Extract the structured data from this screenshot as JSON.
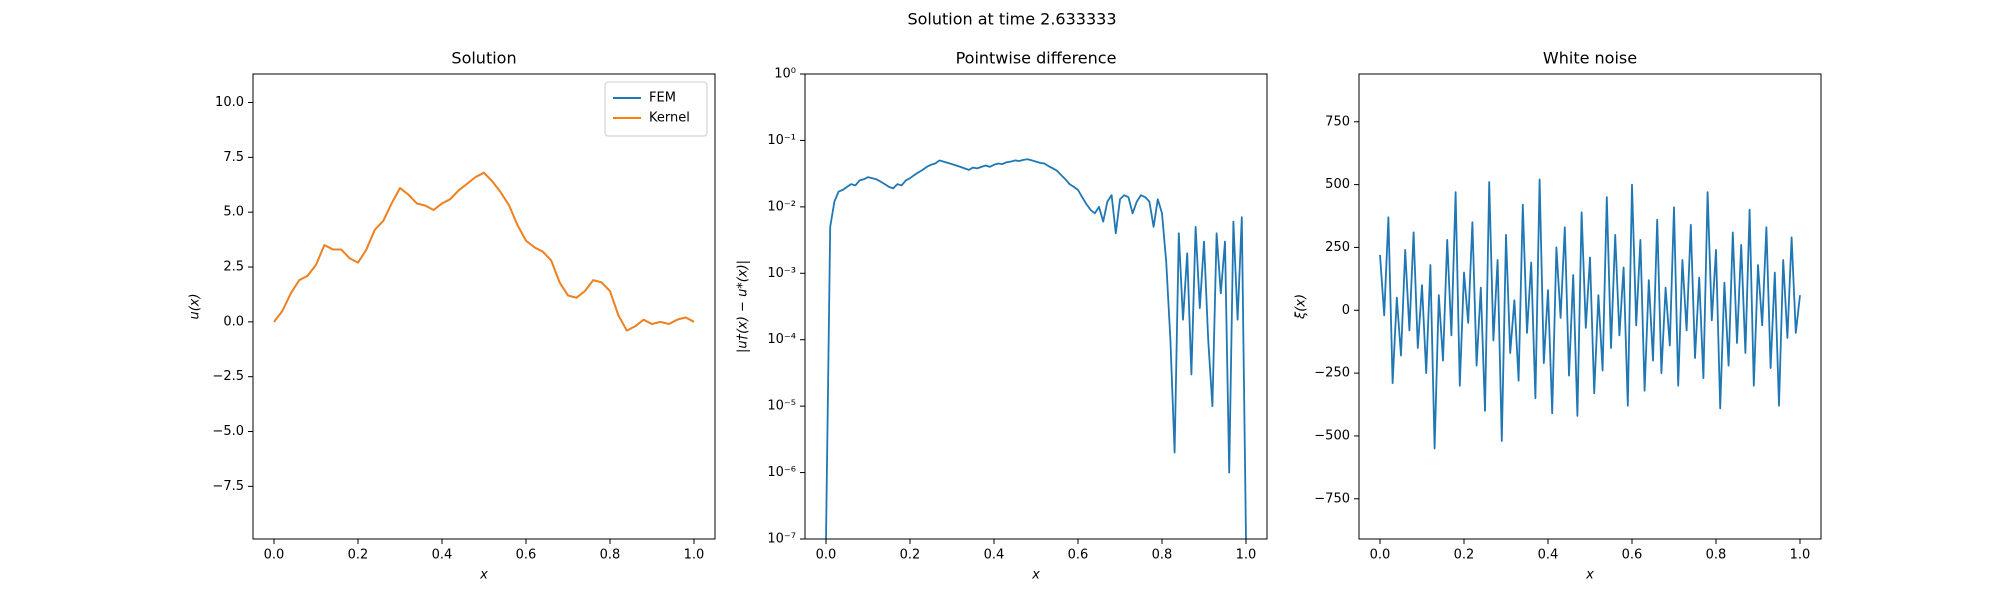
{
  "title": "Solution at time 2.633333",
  "chart_data": [
    {
      "type": "line",
      "title": "Solution",
      "xlabel": "x",
      "ylabel": "u(x)",
      "x": [
        0,
        0.02,
        0.04,
        0.06,
        0.08,
        0.1,
        0.12,
        0.14,
        0.16,
        0.18,
        0.2,
        0.22,
        0.24,
        0.26,
        0.28,
        0.3,
        0.32,
        0.34,
        0.36,
        0.38,
        0.4,
        0.42,
        0.44,
        0.46,
        0.48,
        0.5,
        0.52,
        0.54,
        0.56,
        0.58,
        0.6,
        0.62,
        0.64,
        0.66,
        0.68,
        0.7,
        0.72,
        0.74,
        0.76,
        0.78,
        0.8,
        0.82,
        0.84,
        0.86,
        0.88,
        0.9,
        0.92,
        0.94,
        0.96,
        0.98,
        1
      ],
      "series": [
        {
          "name": "FEM",
          "color": "#1f77b4",
          "values": [
            0,
            0.5,
            1.3,
            1.9,
            2.1,
            2.6,
            3.5,
            3.3,
            3.3,
            2.9,
            2.7,
            3.3,
            4.2,
            4.6,
            5.4,
            6.1,
            5.8,
            5.4,
            5.3,
            5.1,
            5.4,
            5.6,
            6.0,
            6.3,
            6.6,
            6.8,
            6.4,
            5.9,
            5.3,
            4.4,
            3.7,
            3.4,
            3.2,
            2.8,
            1.8,
            1.2,
            1.1,
            1.4,
            1.9,
            1.8,
            1.4,
            0.3,
            -0.4,
            -0.2,
            0.1,
            -0.1,
            0,
            -0.1,
            0.1,
            0.2,
            0
          ]
        },
        {
          "name": "Kernel",
          "color": "#ff7f0e",
          "values": [
            0,
            0.5,
            1.3,
            1.9,
            2.1,
            2.6,
            3.5,
            3.3,
            3.3,
            2.9,
            2.7,
            3.3,
            4.2,
            4.6,
            5.4,
            6.1,
            5.8,
            5.4,
            5.3,
            5.1,
            5.4,
            5.6,
            6.0,
            6.3,
            6.6,
            6.8,
            6.4,
            5.9,
            5.3,
            4.4,
            3.7,
            3.4,
            3.2,
            2.8,
            1.8,
            1.2,
            1.1,
            1.4,
            1.9,
            1.8,
            1.4,
            0.3,
            -0.4,
            -0.2,
            0.1,
            -0.1,
            0,
            -0.1,
            0.1,
            0.2,
            0
          ]
        }
      ],
      "xlim": [
        -0.05,
        1.05
      ],
      "xticks": [
        {
          "value": 0,
          "label": "0.0"
        },
        0.2,
        0.4,
        0.6,
        0.8,
        {
          "value": 1,
          "label": "1.0"
        }
      ],
      "ylim": [
        -9.9,
        11.3
      ],
      "yticks": [
        {
          "value": -7.5,
          "label": "−7.5"
        },
        {
          "value": -5,
          "label": "−5.0"
        },
        {
          "value": -2.5,
          "label": "−2.5"
        },
        {
          "value": 0,
          "label": "0.0"
        },
        2.5,
        {
          "value": 5,
          "label": "5.0"
        },
        7.5,
        {
          "value": 10,
          "label": "10.0"
        }
      ],
      "legend": "upper right"
    },
    {
      "type": "line",
      "title": "Pointwise difference",
      "xlabel": "x",
      "ylabel": "|u†(x) − u*(x)|",
      "yscale": "log",
      "color": "#1f77b4",
      "x": [
        0,
        0.01,
        0.02,
        0.03,
        0.04,
        0.05,
        0.06,
        0.07,
        0.08,
        0.09,
        0.1,
        0.11,
        0.12,
        0.13,
        0.14,
        0.15,
        0.16,
        0.17,
        0.18,
        0.19,
        0.2,
        0.21,
        0.22,
        0.23,
        0.24,
        0.25,
        0.26,
        0.27,
        0.28,
        0.29,
        0.3,
        0.31,
        0.32,
        0.33,
        0.34,
        0.35,
        0.36,
        0.37,
        0.38,
        0.39,
        0.4,
        0.41,
        0.42,
        0.43,
        0.44,
        0.45,
        0.46,
        0.47,
        0.48,
        0.49,
        0.5,
        0.51,
        0.52,
        0.53,
        0.54,
        0.55,
        0.56,
        0.57,
        0.58,
        0.59,
        0.6,
        0.61,
        0.62,
        0.63,
        0.64,
        0.65,
        0.66,
        0.67,
        0.68,
        0.69,
        0.7,
        0.71,
        0.72,
        0.73,
        0.74,
        0.75,
        0.76,
        0.77,
        0.78,
        0.79,
        0.8,
        0.81,
        0.82,
        0.83,
        0.84,
        0.85,
        0.86,
        0.87,
        0.88,
        0.89,
        0.9,
        0.91,
        0.92,
        0.93,
        0.94,
        0.95,
        0.96,
        0.97,
        0.98,
        0.99,
        1
      ],
      "values": [
        1e-07,
        0.005,
        0.012,
        0.017,
        0.018,
        0.02,
        0.022,
        0.021,
        0.025,
        0.026,
        0.028,
        0.027,
        0.026,
        0.024,
        0.022,
        0.02,
        0.019,
        0.022,
        0.021,
        0.025,
        0.027,
        0.03,
        0.033,
        0.036,
        0.04,
        0.043,
        0.045,
        0.05,
        0.048,
        0.046,
        0.044,
        0.042,
        0.04,
        0.038,
        0.036,
        0.039,
        0.038,
        0.04,
        0.042,
        0.04,
        0.043,
        0.045,
        0.044,
        0.047,
        0.048,
        0.05,
        0.049,
        0.051,
        0.052,
        0.05,
        0.048,
        0.046,
        0.045,
        0.041,
        0.038,
        0.035,
        0.03,
        0.026,
        0.022,
        0.02,
        0.018,
        0.014,
        0.011,
        0.009,
        0.008,
        0.01,
        0.006,
        0.012,
        0.015,
        0.004,
        0.013,
        0.015,
        0.014,
        0.008,
        0.012,
        0.015,
        0.014,
        0.012,
        0.005,
        0.013,
        0.008,
        0.0015,
        0.0001,
        2e-06,
        0.004,
        0.0002,
        0.002,
        3e-05,
        0.005,
        0.0003,
        0.003,
        0.0001,
        1e-05,
        0.004,
        0.0005,
        0.003,
        1e-06,
        0.006,
        0.0002,
        0.007,
        1e-07
      ],
      "xlim": [
        -0.05,
        1.05
      ],
      "xticks": [
        {
          "value": 0,
          "label": "0.0"
        },
        0.2,
        0.4,
        0.6,
        0.8,
        {
          "value": 1,
          "label": "1.0"
        }
      ],
      "ylim": [
        1e-07,
        1
      ],
      "yticks": [
        {
          "value": 1e-07,
          "label": "10⁻⁷"
        },
        {
          "value": 1e-06,
          "label": "10⁻⁶"
        },
        {
          "value": 1e-05,
          "label": "10⁻⁵"
        },
        {
          "value": 0.0001,
          "label": "10⁻⁴"
        },
        {
          "value": 0.001,
          "label": "10⁻³"
        },
        {
          "value": 0.01,
          "label": "10⁻²"
        },
        {
          "value": 0.1,
          "label": "10⁻¹"
        },
        {
          "value": 1,
          "label": "10⁰"
        }
      ]
    },
    {
      "type": "line",
      "title": "White noise",
      "xlabel": "x",
      "ylabel": "ξ(x)",
      "color": "#1f77b4",
      "x": [
        0,
        0.01,
        0.02,
        0.03,
        0.04,
        0.05,
        0.06,
        0.07,
        0.08,
        0.09,
        0.1,
        0.11,
        0.12,
        0.13,
        0.14,
        0.15,
        0.16,
        0.17,
        0.18,
        0.19,
        0.2,
        0.21,
        0.22,
        0.23,
        0.24,
        0.25,
        0.26,
        0.27,
        0.28,
        0.29,
        0.3,
        0.31,
        0.32,
        0.33,
        0.34,
        0.35,
        0.36,
        0.37,
        0.38,
        0.39,
        0.4,
        0.41,
        0.42,
        0.43,
        0.44,
        0.45,
        0.46,
        0.47,
        0.48,
        0.49,
        0.5,
        0.51,
        0.52,
        0.53,
        0.54,
        0.55,
        0.56,
        0.57,
        0.58,
        0.59,
        0.6,
        0.61,
        0.62,
        0.63,
        0.64,
        0.65,
        0.66,
        0.67,
        0.68,
        0.69,
        0.7,
        0.71,
        0.72,
        0.73,
        0.74,
        0.75,
        0.76,
        0.77,
        0.78,
        0.79,
        0.8,
        0.81,
        0.82,
        0.83,
        0.84,
        0.85,
        0.86,
        0.87,
        0.88,
        0.89,
        0.9,
        0.91,
        0.92,
        0.93,
        0.94,
        0.95,
        0.96,
        0.97,
        0.98,
        0.99,
        1
      ],
      "values": [
        220,
        -20,
        370,
        -290,
        50,
        -180,
        240,
        -80,
        310,
        -150,
        100,
        -250,
        180,
        -550,
        60,
        -200,
        280,
        -100,
        470,
        -300,
        150,
        -50,
        350,
        -220,
        90,
        -400,
        510,
        -120,
        200,
        -520,
        300,
        -170,
        40,
        -280,
        420,
        -90,
        190,
        -350,
        520,
        -210,
        80,
        -410,
        250,
        -30,
        330,
        -260,
        140,
        -420,
        390,
        -70,
        210,
        -330,
        60,
        -240,
        450,
        -150,
        300,
        -100,
        170,
        -380,
        500,
        -60,
        280,
        -320,
        120,
        -200,
        360,
        -250,
        90,
        -140,
        410,
        -300,
        200,
        -80,
        340,
        -190,
        130,
        -270,
        470,
        -40,
        240,
        -390,
        110,
        -220,
        310,
        -130,
        260,
        -170,
        400,
        -300,
        180,
        -60,
        330,
        -230,
        150,
        -380,
        200,
        -110,
        290,
        -90,
        60
      ],
      "xlim": [
        -0.05,
        1.05
      ],
      "xticks": [
        {
          "value": 0,
          "label": "0.0"
        },
        0.2,
        0.4,
        0.6,
        0.8,
        {
          "value": 1,
          "label": "1.0"
        }
      ],
      "ylim": [
        -910,
        940
      ],
      "yticks": [
        {
          "value": -750,
          "label": "−750"
        },
        {
          "value": -500,
          "label": "−500"
        },
        {
          "value": -250,
          "label": "−250"
        },
        0,
        250,
        500,
        750
      ]
    }
  ]
}
